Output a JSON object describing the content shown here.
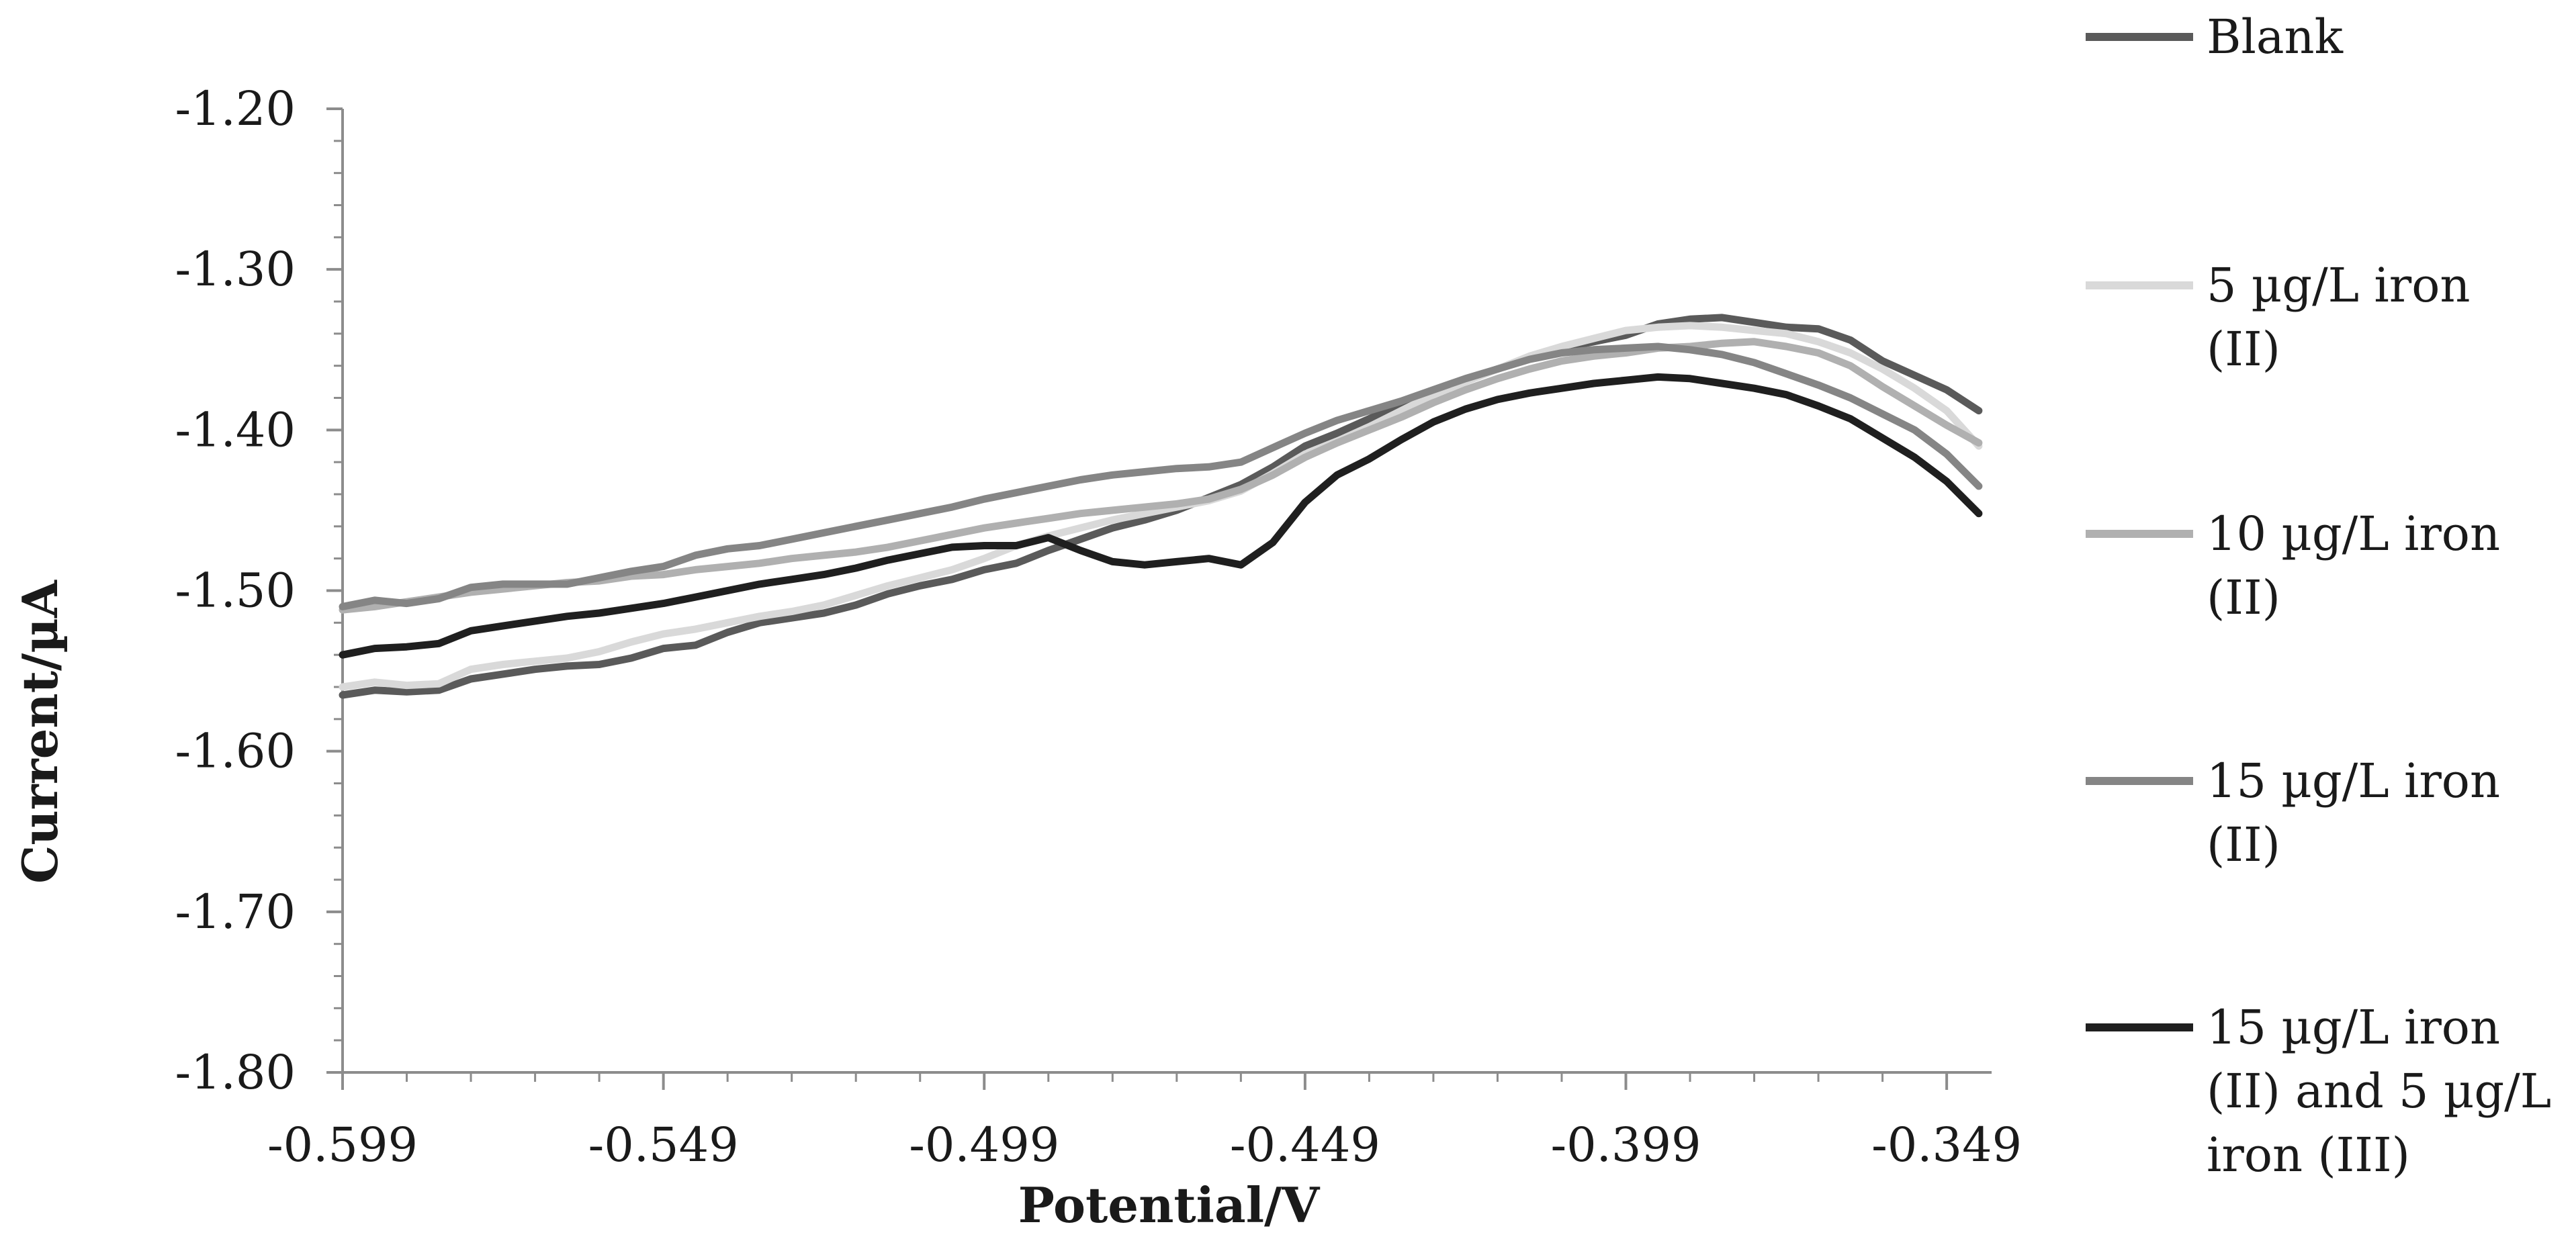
{
  "chart_data": {
    "type": "line",
    "xlabel": "Potential/V",
    "ylabel": "Current/µA",
    "xlim": [
      -0.599,
      -0.342
    ],
    "ylim": [
      -1.8,
      -1.2
    ],
    "xticks": [
      -0.599,
      -0.549,
      -0.499,
      -0.449,
      -0.399,
      -0.349
    ],
    "xtick_labels": [
      "-0.599",
      "-0.549",
      "-0.499",
      "-0.449",
      "-0.399",
      "-0.349"
    ],
    "yticks": [
      -1.2,
      -1.3,
      -1.4,
      -1.5,
      -1.6,
      -1.7,
      -1.8
    ],
    "ytick_labels": [
      "-1.20",
      "-1.30",
      "-1.40",
      "-1.50",
      "-1.60",
      "-1.70",
      "-1.80"
    ],
    "grid": false,
    "legend_position": "right",
    "series": [
      {
        "name": "Blank",
        "color": "#5a5a5a",
        "points": [
          [
            -0.599,
            -1.565
          ],
          [
            -0.594,
            -1.562
          ],
          [
            -0.589,
            -1.563
          ],
          [
            -0.584,
            -1.562
          ],
          [
            -0.579,
            -1.555
          ],
          [
            -0.574,
            -1.552
          ],
          [
            -0.569,
            -1.549
          ],
          [
            -0.564,
            -1.547
          ],
          [
            -0.559,
            -1.546
          ],
          [
            -0.554,
            -1.542
          ],
          [
            -0.549,
            -1.536
          ],
          [
            -0.544,
            -1.534
          ],
          [
            -0.539,
            -1.526
          ],
          [
            -0.534,
            -1.52
          ],
          [
            -0.529,
            -1.517
          ],
          [
            -0.524,
            -1.514
          ],
          [
            -0.519,
            -1.509
          ],
          [
            -0.514,
            -1.502
          ],
          [
            -0.509,
            -1.497
          ],
          [
            -0.504,
            -1.493
          ],
          [
            -0.499,
            -1.487
          ],
          [
            -0.494,
            -1.483
          ],
          [
            -0.489,
            -1.475
          ],
          [
            -0.484,
            -1.468
          ],
          [
            -0.479,
            -1.461
          ],
          [
            -0.474,
            -1.456
          ],
          [
            -0.469,
            -1.45
          ],
          [
            -0.464,
            -1.442
          ],
          [
            -0.459,
            -1.434
          ],
          [
            -0.454,
            -1.423
          ],
          [
            -0.449,
            -1.41
          ],
          [
            -0.444,
            -1.402
          ],
          [
            -0.439,
            -1.393
          ],
          [
            -0.434,
            -1.384
          ],
          [
            -0.429,
            -1.377
          ],
          [
            -0.424,
            -1.369
          ],
          [
            -0.419,
            -1.362
          ],
          [
            -0.414,
            -1.355
          ],
          [
            -0.409,
            -1.349
          ],
          [
            -0.404,
            -1.345
          ],
          [
            -0.399,
            -1.341
          ],
          [
            -0.394,
            -1.334
          ],
          [
            -0.389,
            -1.331
          ],
          [
            -0.384,
            -1.33
          ],
          [
            -0.379,
            -1.333
          ],
          [
            -0.374,
            -1.336
          ],
          [
            -0.369,
            -1.337
          ],
          [
            -0.364,
            -1.344
          ],
          [
            -0.359,
            -1.357
          ],
          [
            -0.354,
            -1.366
          ],
          [
            -0.349,
            -1.375
          ],
          [
            -0.344,
            -1.388
          ]
        ]
      },
      {
        "name": "5 µg/L iron (II)",
        "color": "#d9d9d9",
        "points": [
          [
            -0.599,
            -1.56
          ],
          [
            -0.594,
            -1.557
          ],
          [
            -0.589,
            -1.559
          ],
          [
            -0.584,
            -1.558
          ],
          [
            -0.579,
            -1.549
          ],
          [
            -0.574,
            -1.546
          ],
          [
            -0.569,
            -1.544
          ],
          [
            -0.564,
            -1.542
          ],
          [
            -0.559,
            -1.538
          ],
          [
            -0.554,
            -1.532
          ],
          [
            -0.549,
            -1.527
          ],
          [
            -0.544,
            -1.524
          ],
          [
            -0.539,
            -1.52
          ],
          [
            -0.534,
            -1.516
          ],
          [
            -0.529,
            -1.513
          ],
          [
            -0.524,
            -1.509
          ],
          [
            -0.519,
            -1.503
          ],
          [
            -0.514,
            -1.497
          ],
          [
            -0.509,
            -1.492
          ],
          [
            -0.504,
            -1.487
          ],
          [
            -0.499,
            -1.48
          ],
          [
            -0.494,
            -1.472
          ],
          [
            -0.489,
            -1.466
          ],
          [
            -0.484,
            -1.461
          ],
          [
            -0.479,
            -1.456
          ],
          [
            -0.474,
            -1.452
          ],
          [
            -0.469,
            -1.448
          ],
          [
            -0.464,
            -1.444
          ],
          [
            -0.459,
            -1.438
          ],
          [
            -0.454,
            -1.427
          ],
          [
            -0.449,
            -1.415
          ],
          [
            -0.444,
            -1.407
          ],
          [
            -0.439,
            -1.398
          ],
          [
            -0.434,
            -1.388
          ],
          [
            -0.429,
            -1.378
          ],
          [
            -0.424,
            -1.37
          ],
          [
            -0.419,
            -1.362
          ],
          [
            -0.414,
            -1.354
          ],
          [
            -0.409,
            -1.348
          ],
          [
            -0.404,
            -1.343
          ],
          [
            -0.399,
            -1.338
          ],
          [
            -0.394,
            -1.336
          ],
          [
            -0.389,
            -1.335
          ],
          [
            -0.384,
            -1.336
          ],
          [
            -0.379,
            -1.338
          ],
          [
            -0.374,
            -1.34
          ],
          [
            -0.369,
            -1.345
          ],
          [
            -0.364,
            -1.352
          ],
          [
            -0.359,
            -1.362
          ],
          [
            -0.354,
            -1.374
          ],
          [
            -0.349,
            -1.388
          ],
          [
            -0.344,
            -1.41
          ]
        ]
      },
      {
        "name": "10 µg/L iron (II)",
        "color": "#b0b0b0",
        "points": [
          [
            -0.599,
            -1.512
          ],
          [
            -0.594,
            -1.51
          ],
          [
            -0.589,
            -1.507
          ],
          [
            -0.584,
            -1.504
          ],
          [
            -0.579,
            -1.501
          ],
          [
            -0.574,
            -1.499
          ],
          [
            -0.569,
            -1.497
          ],
          [
            -0.564,
            -1.495
          ],
          [
            -0.559,
            -1.494
          ],
          [
            -0.554,
            -1.491
          ],
          [
            -0.549,
            -1.49
          ],
          [
            -0.544,
            -1.487
          ],
          [
            -0.539,
            -1.485
          ],
          [
            -0.534,
            -1.483
          ],
          [
            -0.529,
            -1.48
          ],
          [
            -0.524,
            -1.478
          ],
          [
            -0.519,
            -1.476
          ],
          [
            -0.514,
            -1.473
          ],
          [
            -0.509,
            -1.469
          ],
          [
            -0.504,
            -1.465
          ],
          [
            -0.499,
            -1.461
          ],
          [
            -0.494,
            -1.458
          ],
          [
            -0.489,
            -1.455
          ],
          [
            -0.484,
            -1.452
          ],
          [
            -0.479,
            -1.45
          ],
          [
            -0.474,
            -1.448
          ],
          [
            -0.469,
            -1.446
          ],
          [
            -0.464,
            -1.443
          ],
          [
            -0.459,
            -1.437
          ],
          [
            -0.454,
            -1.428
          ],
          [
            -0.449,
            -1.417
          ],
          [
            -0.444,
            -1.408
          ],
          [
            -0.439,
            -1.4
          ],
          [
            -0.434,
            -1.392
          ],
          [
            -0.429,
            -1.383
          ],
          [
            -0.424,
            -1.375
          ],
          [
            -0.419,
            -1.368
          ],
          [
            -0.414,
            -1.362
          ],
          [
            -0.409,
            -1.357
          ],
          [
            -0.404,
            -1.354
          ],
          [
            -0.399,
            -1.352
          ],
          [
            -0.394,
            -1.349
          ],
          [
            -0.389,
            -1.348
          ],
          [
            -0.384,
            -1.346
          ],
          [
            -0.379,
            -1.345
          ],
          [
            -0.374,
            -1.348
          ],
          [
            -0.369,
            -1.352
          ],
          [
            -0.364,
            -1.36
          ],
          [
            -0.359,
            -1.373
          ],
          [
            -0.354,
            -1.385
          ],
          [
            -0.349,
            -1.397
          ],
          [
            -0.344,
            -1.408
          ]
        ]
      },
      {
        "name": "15 µg/L iron (II)",
        "color": "#858585",
        "points": [
          [
            -0.599,
            -1.51
          ],
          [
            -0.594,
            -1.506
          ],
          [
            -0.589,
            -1.508
          ],
          [
            -0.584,
            -1.505
          ],
          [
            -0.579,
            -1.498
          ],
          [
            -0.574,
            -1.496
          ],
          [
            -0.569,
            -1.496
          ],
          [
            -0.564,
            -1.496
          ],
          [
            -0.559,
            -1.492
          ],
          [
            -0.554,
            -1.488
          ],
          [
            -0.549,
            -1.485
          ],
          [
            -0.544,
            -1.478
          ],
          [
            -0.539,
            -1.474
          ],
          [
            -0.534,
            -1.472
          ],
          [
            -0.529,
            -1.468
          ],
          [
            -0.524,
            -1.464
          ],
          [
            -0.519,
            -1.46
          ],
          [
            -0.514,
            -1.456
          ],
          [
            -0.509,
            -1.452
          ],
          [
            -0.504,
            -1.448
          ],
          [
            -0.499,
            -1.443
          ],
          [
            -0.494,
            -1.439
          ],
          [
            -0.489,
            -1.435
          ],
          [
            -0.484,
            -1.431
          ],
          [
            -0.479,
            -1.428
          ],
          [
            -0.474,
            -1.426
          ],
          [
            -0.469,
            -1.424
          ],
          [
            -0.464,
            -1.423
          ],
          [
            -0.459,
            -1.42
          ],
          [
            -0.454,
            -1.411
          ],
          [
            -0.449,
            -1.402
          ],
          [
            -0.444,
            -1.394
          ],
          [
            -0.439,
            -1.388
          ],
          [
            -0.434,
            -1.382
          ],
          [
            -0.429,
            -1.375
          ],
          [
            -0.424,
            -1.368
          ],
          [
            -0.419,
            -1.362
          ],
          [
            -0.414,
            -1.356
          ],
          [
            -0.409,
            -1.352
          ],
          [
            -0.404,
            -1.35
          ],
          [
            -0.399,
            -1.349
          ],
          [
            -0.394,
            -1.348
          ],
          [
            -0.389,
            -1.35
          ],
          [
            -0.384,
            -1.353
          ],
          [
            -0.379,
            -1.358
          ],
          [
            -0.374,
            -1.365
          ],
          [
            -0.369,
            -1.372
          ],
          [
            -0.364,
            -1.38
          ],
          [
            -0.359,
            -1.39
          ],
          [
            -0.354,
            -1.4
          ],
          [
            -0.349,
            -1.415
          ],
          [
            -0.344,
            -1.435
          ]
        ]
      },
      {
        "name": "15 µg/L iron (II) and 5 µg/L iron (III)",
        "color": "#1f1f1f",
        "points": [
          [
            -0.599,
            -1.54
          ],
          [
            -0.594,
            -1.536
          ],
          [
            -0.589,
            -1.535
          ],
          [
            -0.584,
            -1.533
          ],
          [
            -0.579,
            -1.525
          ],
          [
            -0.574,
            -1.522
          ],
          [
            -0.569,
            -1.519
          ],
          [
            -0.564,
            -1.516
          ],
          [
            -0.559,
            -1.514
          ],
          [
            -0.554,
            -1.511
          ],
          [
            -0.549,
            -1.508
          ],
          [
            -0.544,
            -1.504
          ],
          [
            -0.539,
            -1.5
          ],
          [
            -0.534,
            -1.496
          ],
          [
            -0.529,
            -1.493
          ],
          [
            -0.524,
            -1.49
          ],
          [
            -0.519,
            -1.486
          ],
          [
            -0.514,
            -1.481
          ],
          [
            -0.509,
            -1.477
          ],
          [
            -0.504,
            -1.473
          ],
          [
            -0.499,
            -1.472
          ],
          [
            -0.494,
            -1.472
          ],
          [
            -0.489,
            -1.467
          ],
          [
            -0.484,
            -1.475
          ],
          [
            -0.479,
            -1.482
          ],
          [
            -0.474,
            -1.484
          ],
          [
            -0.469,
            -1.482
          ],
          [
            -0.464,
            -1.48
          ],
          [
            -0.459,
            -1.484
          ],
          [
            -0.454,
            -1.47
          ],
          [
            -0.449,
            -1.445
          ],
          [
            -0.444,
            -1.428
          ],
          [
            -0.439,
            -1.418
          ],
          [
            -0.434,
            -1.406
          ],
          [
            -0.429,
            -1.395
          ],
          [
            -0.424,
            -1.387
          ],
          [
            -0.419,
            -1.381
          ],
          [
            -0.414,
            -1.377
          ],
          [
            -0.409,
            -1.374
          ],
          [
            -0.404,
            -1.371
          ],
          [
            -0.399,
            -1.369
          ],
          [
            -0.394,
            -1.367
          ],
          [
            -0.389,
            -1.368
          ],
          [
            -0.384,
            -1.371
          ],
          [
            -0.379,
            -1.374
          ],
          [
            -0.374,
            -1.378
          ],
          [
            -0.369,
            -1.385
          ],
          [
            -0.364,
            -1.393
          ],
          [
            -0.359,
            -1.405
          ],
          [
            -0.354,
            -1.417
          ],
          [
            -0.349,
            -1.432
          ],
          [
            -0.344,
            -1.452
          ]
        ]
      }
    ],
    "legend_lines": [
      [
        "Blank"
      ],
      [
        "5 µg/L iron",
        "(II)"
      ],
      [
        "10 µg/L iron",
        "(II)"
      ],
      [
        "15 µg/L iron",
        "(II)"
      ],
      [
        "15 µg/L iron",
        "(II) and 5 µg/L",
        "iron (III)"
      ]
    ]
  }
}
